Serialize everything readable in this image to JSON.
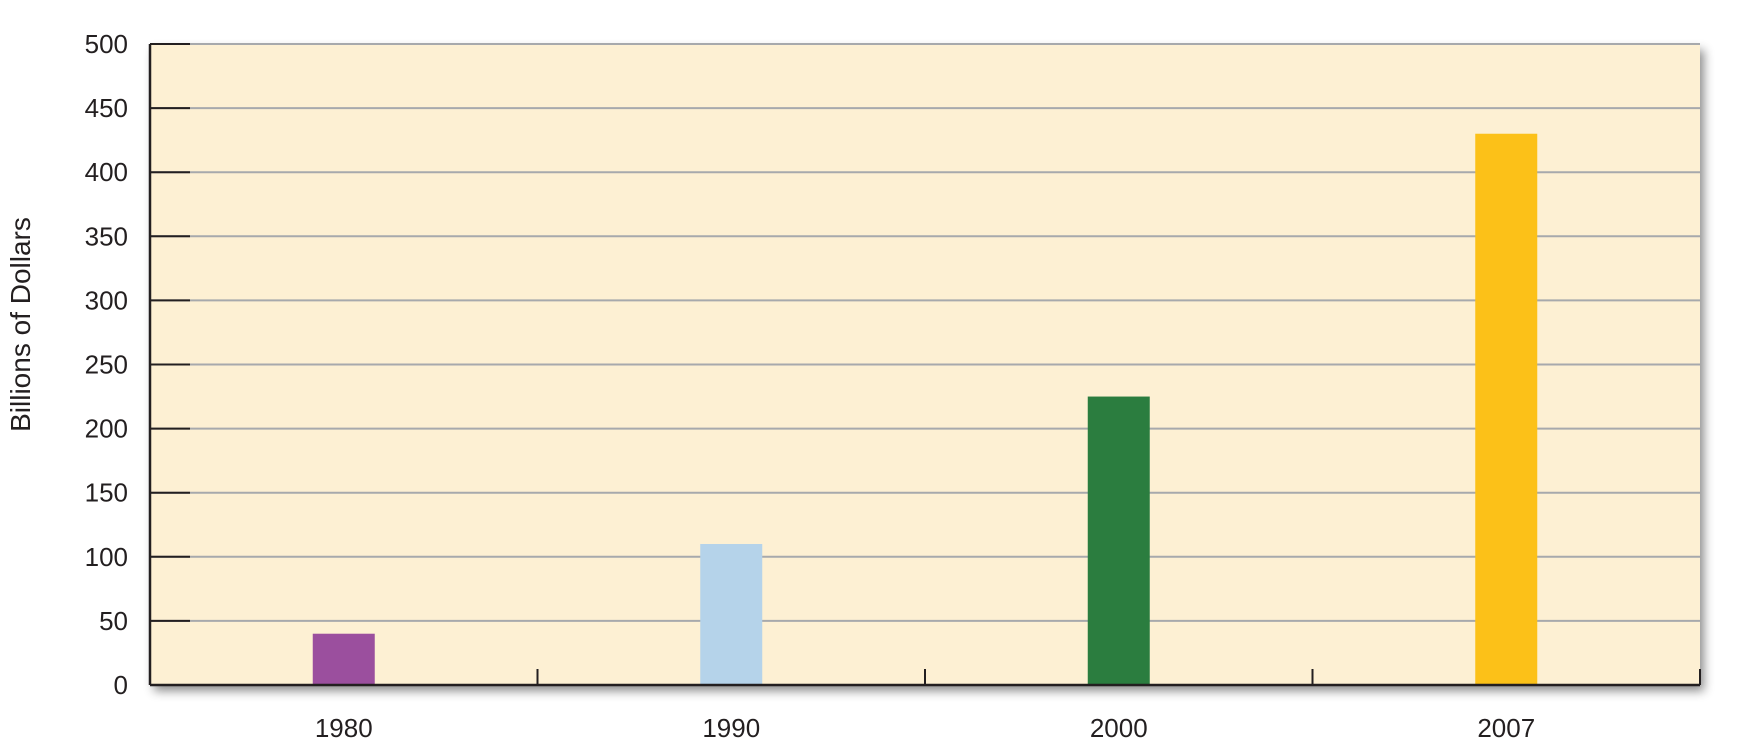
{
  "chart_data": {
    "type": "bar",
    "categories": [
      "1980",
      "1990",
      "2000",
      "2007"
    ],
    "values": [
      40,
      110,
      225,
      430
    ],
    "bar_colors": [
      "#9b4f9e",
      "#b5d3ea",
      "#2b7d3f",
      "#fcc118"
    ],
    "ylabel": "Billions of Dollars",
    "ylim": [
      0,
      500
    ],
    "yticks": [
      0,
      50,
      100,
      150,
      200,
      250,
      300,
      350,
      400,
      450,
      500
    ],
    "grid": true,
    "plot_background": "#fdf0d3",
    "gridline_color": "#a7a9ac",
    "axis_color": "#231f20"
  }
}
